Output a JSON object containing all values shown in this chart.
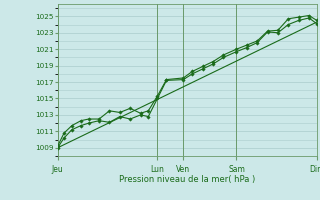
{
  "title": "",
  "xlabel": "Pression niveau de la mer( hPa )",
  "ylabel": "",
  "bg_color": "#cce8e8",
  "grid_color": "#aacccc",
  "line_color": "#1a6b1a",
  "marker_color": "#1a6b1a",
  "vline_color": "#6a9a6a",
  "ylim": [
    1008.0,
    1026.5
  ],
  "yticks": [
    1009,
    1011,
    1013,
    1015,
    1017,
    1019,
    1021,
    1023,
    1025
  ],
  "day_labels": [
    "Jeu",
    "Lun",
    "Ven",
    "Sam",
    "Dim"
  ],
  "day_positions": [
    0,
    3.85,
    4.85,
    6.9,
    10.0
  ],
  "xlim": [
    0,
    10.0
  ],
  "series1_x": [
    0.0,
    0.25,
    0.55,
    0.9,
    1.2,
    1.6,
    2.0,
    2.4,
    2.8,
    3.2,
    3.5,
    3.85,
    4.2,
    4.85,
    5.2,
    5.6,
    6.0,
    6.4,
    6.9,
    7.3,
    7.7,
    8.1,
    8.5,
    8.9,
    9.3,
    9.7,
    10.0
  ],
  "series1_y": [
    1009.0,
    1010.2,
    1011.2,
    1011.7,
    1012.0,
    1012.3,
    1012.1,
    1012.8,
    1012.5,
    1013.0,
    1012.8,
    1015.0,
    1017.2,
    1017.3,
    1018.0,
    1018.6,
    1019.2,
    1020.0,
    1020.7,
    1021.2,
    1021.8,
    1023.1,
    1023.0,
    1024.0,
    1024.5,
    1024.8,
    1024.1
  ],
  "series2_x": [
    0.0,
    0.25,
    0.55,
    0.9,
    1.2,
    1.6,
    2.0,
    2.4,
    2.8,
    3.2,
    3.5,
    3.85,
    4.2,
    4.85,
    5.2,
    5.6,
    6.0,
    6.4,
    6.9,
    7.3,
    7.7,
    8.1,
    8.5,
    8.9,
    9.3,
    9.7,
    10.0
  ],
  "series2_y": [
    1009.2,
    1010.8,
    1011.7,
    1012.3,
    1012.5,
    1012.5,
    1013.5,
    1013.3,
    1013.8,
    1013.2,
    1013.5,
    1015.3,
    1017.3,
    1017.5,
    1018.3,
    1018.9,
    1019.5,
    1020.3,
    1021.0,
    1021.5,
    1022.0,
    1023.2,
    1023.3,
    1024.7,
    1024.9,
    1025.1,
    1024.5
  ],
  "series3_x": [
    0.0,
    10.0
  ],
  "series3_y": [
    1009.0,
    1024.3
  ],
  "xlabel_fontsize": 6.0,
  "ytick_fontsize": 5.2,
  "xtick_fontsize": 5.5
}
